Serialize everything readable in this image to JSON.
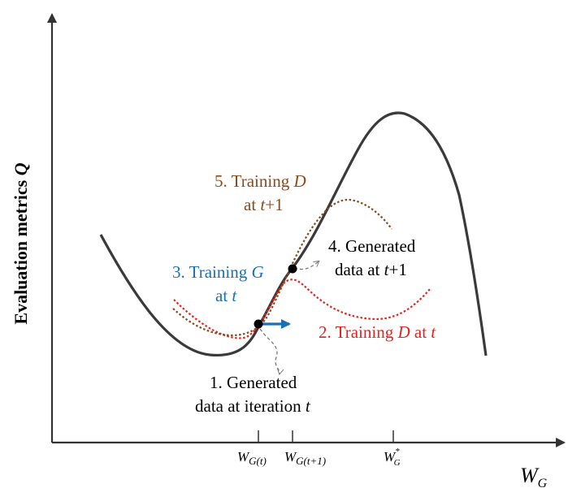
{
  "axes": {
    "y_label_prefix": "Evaluation metrics ",
    "y_label_var": "Q",
    "x_label": "W",
    "x_label_sub": "G"
  },
  "ticks": [
    {
      "name": "w-g-t",
      "main": "W",
      "sub": "G(t)"
    },
    {
      "name": "w-g-t1",
      "main": "W",
      "sub": "G(t+1)"
    },
    {
      "name": "w-g-star",
      "main": "W",
      "sub": "G",
      "sup": "*"
    }
  ],
  "annotations": {
    "step1_line1": "1. Generated",
    "step1_line2": "data at iteration ",
    "step1_var": "t",
    "step2_prefix": "2. Training ",
    "step2_var": "D",
    "step2_mid": " at ",
    "step2_var2": "t",
    "step3_line1_prefix": "3. Training ",
    "step3_var": "G",
    "step3_line2_prefix": "at ",
    "step3_var2": "t",
    "step4_line1": "4. Generated",
    "step4_line2_prefix": "data at ",
    "step4_var": "t",
    "step4_suffix": "+1",
    "step5_line1_prefix": "5. Training ",
    "step5_var": "D",
    "step5_line2_prefix": "at ",
    "step5_var2": "t",
    "step5_suffix": "+1"
  },
  "colors": {
    "axis": "#333333",
    "main_curve": "#3a3a3a",
    "red_dotted": "#e8211d",
    "brown_dotted": "#8b4a1c",
    "blue_arrow": "#1a6fba",
    "step3_text": "#1a6fba",
    "step2_text": "#e8211d",
    "step5_text": "#8b4a1c",
    "grey_arrow": "#777777"
  }
}
